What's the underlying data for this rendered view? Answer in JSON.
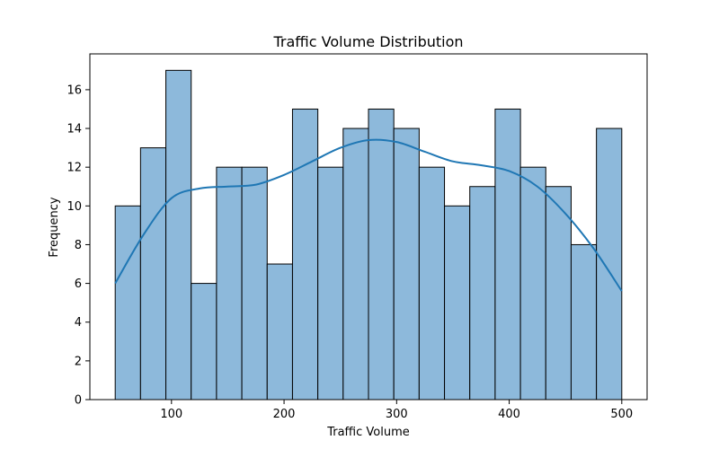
{
  "chart_data": {
    "type": "bar",
    "title": "Traffic Volume Distribution",
    "xlabel": "Traffic Volume",
    "ylabel": "Frequency",
    "xlim": [
      27.5,
      522.5
    ],
    "ylim": [
      0,
      17.85
    ],
    "xticks": [
      100,
      200,
      300,
      400,
      500
    ],
    "yticks": [
      0,
      2,
      4,
      6,
      8,
      10,
      12,
      14,
      16
    ],
    "bin_edges": [
      50,
      72.5,
      95,
      117.5,
      140,
      162.5,
      185,
      207.5,
      230,
      252.5,
      275,
      297.5,
      320,
      342.5,
      365,
      387.5,
      410,
      432.5,
      455,
      477.5,
      500
    ],
    "values": [
      10,
      13,
      17,
      6,
      12,
      12,
      7,
      15,
      12,
      14,
      15,
      14,
      12,
      10,
      11,
      15,
      12,
      11,
      8,
      14
    ],
    "kde": {
      "x": [
        50,
        75,
        100,
        125,
        150,
        175,
        200,
        225,
        250,
        275,
        300,
        325,
        350,
        375,
        400,
        425,
        450,
        475,
        500
      ],
      "y": [
        6.0,
        8.5,
        10.4,
        10.9,
        11.0,
        11.1,
        11.6,
        12.3,
        13.0,
        13.4,
        13.3,
        12.8,
        12.3,
        12.1,
        11.8,
        11.0,
        9.6,
        7.8,
        5.6
      ]
    },
    "bar_fill": "#8db9db",
    "bar_edge": "#000000",
    "kde_color": "#1f77b4",
    "grid": false
  }
}
